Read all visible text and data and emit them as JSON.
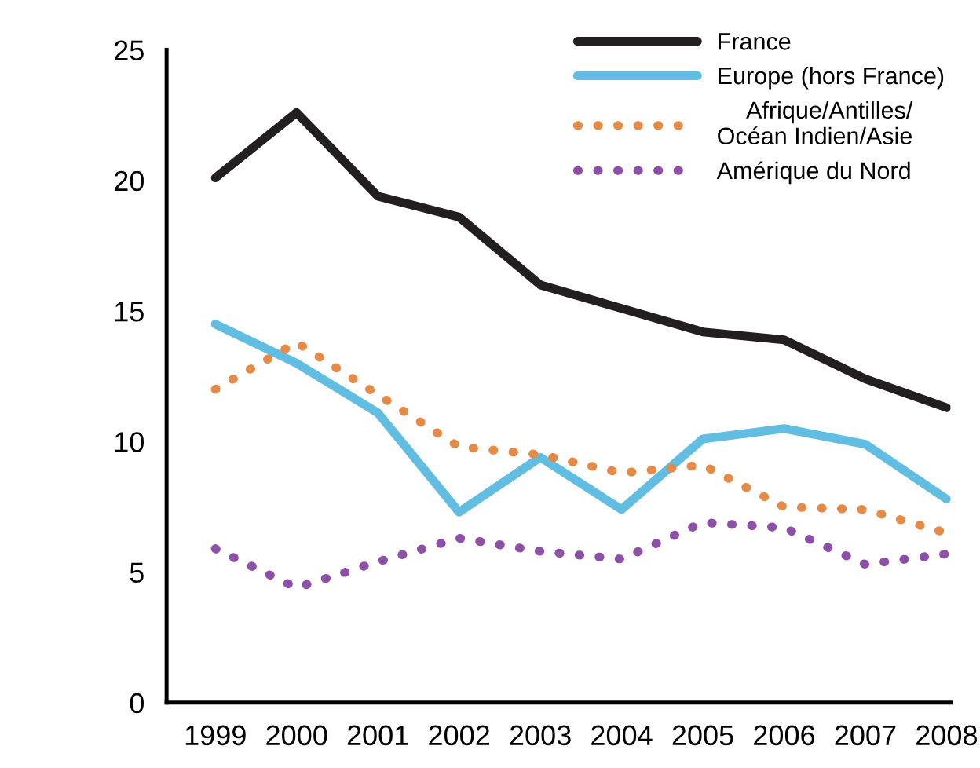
{
  "chart_data": {
    "type": "line",
    "categories": [
      "1999",
      "2000",
      "2001",
      "2002",
      "2003",
      "2004",
      "2005",
      "2006",
      "2007",
      "2008"
    ],
    "ylim": [
      0,
      25
    ],
    "yticks": [
      0,
      5,
      10,
      15,
      20,
      25
    ],
    "grid": false,
    "legend": "top right",
    "marker": "none",
    "series": [
      {
        "name": "France",
        "color": "#231f20",
        "line_style": "solid",
        "values": [
          20.1,
          22.6,
          19.4,
          18.6,
          16.0,
          15.1,
          14.2,
          13.9,
          12.4,
          11.3
        ]
      },
      {
        "name": "Europe (hors France)",
        "color": "#62bde2",
        "line_style": "solid",
        "values": [
          14.5,
          13.0,
          11.1,
          7.3,
          9.4,
          7.4,
          10.1,
          10.5,
          9.9,
          7.8
        ]
      },
      {
        "name": "Afrique/Antilles/\nOcéan Indien/Asie",
        "color": "#e68a45",
        "line_style": "dotted",
        "values": [
          12.0,
          13.8,
          11.8,
          9.8,
          9.5,
          8.8,
          9.1,
          7.5,
          7.4,
          6.5
        ]
      },
      {
        "name": "Amérique du Nord",
        "color": "#8e4fa8",
        "line_style": "dotted",
        "values": [
          5.9,
          4.4,
          5.4,
          6.3,
          5.8,
          5.5,
          6.9,
          6.7,
          5.3,
          5.7
        ]
      }
    ]
  }
}
